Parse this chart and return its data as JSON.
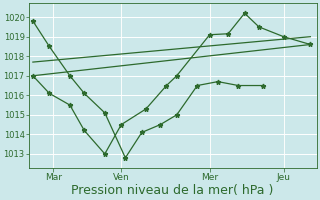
{
  "bg_color": "#cce8ea",
  "grid_color": "#ffffff",
  "line_color": "#2d6a2d",
  "xlabel": "Pression niveau de la mer( hPa )",
  "xlabel_fontsize": 9,
  "ylabel_ticks": [
    1013,
    1014,
    1015,
    1016,
    1017,
    1018,
    1019,
    1020
  ],
  "ylim": [
    1012.3,
    1020.7
  ],
  "xlim": [
    -0.2,
    13.8
  ],
  "xtick_labels": [
    "Mar",
    "Ven",
    "Mer",
    "Jeu"
  ],
  "xtick_positions": [
    1.0,
    4.3,
    8.6,
    12.2
  ],
  "series1_x": [
    0.0,
    0.8,
    1.8,
    2.5,
    3.5,
    4.5,
    5.3,
    6.2,
    7.0,
    8.0,
    9.0,
    10.0,
    11.2
  ],
  "series1_y": [
    1019.8,
    1018.5,
    1017.0,
    1016.1,
    1015.1,
    1012.8,
    1014.1,
    1014.5,
    1015.0,
    1016.5,
    1016.7,
    1016.5,
    1016.5
  ],
  "series2_x": [
    0.0,
    0.8,
    1.8,
    2.5,
    3.5,
    4.3,
    5.5,
    6.5,
    7.0,
    8.6,
    9.5,
    10.3,
    11.0,
    12.2,
    13.5
  ],
  "series2_y": [
    1017.0,
    1016.1,
    1015.5,
    1014.2,
    1013.0,
    1014.5,
    1015.3,
    1016.5,
    1017.0,
    1019.1,
    1019.15,
    1020.2,
    1019.5,
    1019.0,
    1018.6
  ],
  "series3_x": [
    0.0,
    13.5
  ],
  "series3_y": [
    1017.7,
    1019.0
  ],
  "series4_x": [
    0.0,
    13.5
  ],
  "series4_y": [
    1017.0,
    1018.6
  ],
  "vline_positions": [
    1.0,
    4.3,
    8.6,
    12.2
  ]
}
